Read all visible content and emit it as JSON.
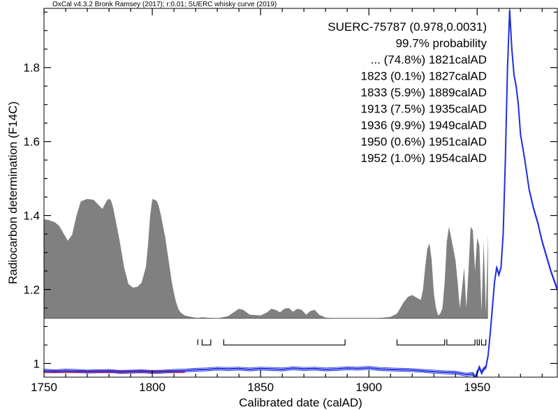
{
  "header": {
    "text": "OxCal v4.3.2 Bronk Ramsey (2017); r:0.01; SUERC whisky curve (2019)"
  },
  "colors": {
    "curve": "#1f2fe0",
    "probability_fill": "#808080",
    "measurement": "#e8403c",
    "axis": "#000000"
  },
  "chart_data": {
    "type": "area",
    "title": "",
    "xlabel": "Calibrated date (calAD)",
    "ylabel": "Radiocarbon determination (F14C)",
    "xlim": [
      1750,
      1987
    ],
    "ylim": [
      0.963,
      1.96
    ],
    "x_ticks": [
      1750,
      1800,
      1850,
      1900,
      1950
    ],
    "y_ticks": [
      1,
      1.2,
      1.4,
      1.6,
      1.8
    ],
    "y_tick_labels": [
      "1",
      "1.2",
      "1.4",
      "1.6",
      "1.8"
    ],
    "annotation": {
      "sample": "SUERC-75787 (0.978,0.0031)",
      "probability": "99.7% probability",
      "ranges": [
        "... (74.8%) 1821calAD",
        "1823 (0.1%) 1827calAD",
        "1833 (5.9%) 1889calAD",
        "1913 (7.5%) 1935calAD",
        "1936 (9.9%) 1949calAD",
        "1950 (0.6%) 1951calAD",
        "1952 (1.0%) 1954calAD"
      ]
    },
    "probability_distribution": {
      "baseline": 1.122,
      "x": [
        1750,
        1752,
        1755,
        1757,
        1759,
        1761,
        1763,
        1765,
        1767,
        1770,
        1773,
        1775,
        1777,
        1779,
        1780,
        1781,
        1782,
        1783,
        1785,
        1787,
        1789,
        1791,
        1793,
        1795,
        1797,
        1798,
        1799,
        1800,
        1802,
        1803,
        1804,
        1805,
        1806,
        1807,
        1808,
        1809,
        1810,
        1811,
        1812,
        1813,
        1815,
        1817,
        1819,
        1821,
        1823,
        1825,
        1830,
        1835,
        1838,
        1840,
        1842,
        1845,
        1850,
        1853,
        1855,
        1857,
        1859,
        1861,
        1863,
        1865,
        1867,
        1869,
        1871,
        1873,
        1875,
        1877,
        1880,
        1885,
        1890,
        1895,
        1900,
        1905,
        1910,
        1913,
        1916,
        1918,
        1920,
        1922,
        1924,
        1925,
        1926,
        1927,
        1928,
        1929,
        1930,
        1931,
        1932,
        1933,
        1934,
        1935,
        1936,
        1937,
        1938,
        1939,
        1940,
        1941,
        1942,
        1943,
        1944,
        1945,
        1946,
        1947,
        1948,
        1949,
        1950,
        1951,
        1952,
        1953,
        1954,
        1955
      ],
      "y": [
        1.39,
        1.388,
        1.382,
        1.372,
        1.352,
        1.332,
        1.348,
        1.4,
        1.438,
        1.445,
        1.442,
        1.43,
        1.418,
        1.44,
        1.446,
        1.44,
        1.42,
        1.39,
        1.33,
        1.26,
        1.215,
        1.205,
        1.207,
        1.218,
        1.26,
        1.32,
        1.4,
        1.445,
        1.44,
        1.425,
        1.4,
        1.37,
        1.34,
        1.3,
        1.26,
        1.22,
        1.19,
        1.165,
        1.148,
        1.138,
        1.13,
        1.127,
        1.125,
        1.123,
        1.125,
        1.124,
        1.122,
        1.128,
        1.14,
        1.148,
        1.145,
        1.132,
        1.13,
        1.138,
        1.148,
        1.145,
        1.138,
        1.148,
        1.15,
        1.14,
        1.148,
        1.145,
        1.132,
        1.142,
        1.145,
        1.132,
        1.124,
        1.122,
        1.122,
        1.122,
        1.122,
        1.123,
        1.126,
        1.135,
        1.165,
        1.18,
        1.185,
        1.178,
        1.172,
        1.2,
        1.26,
        1.31,
        1.325,
        1.28,
        1.19,
        1.15,
        1.13,
        1.135,
        1.15,
        1.22,
        1.33,
        1.37,
        1.34,
        1.31,
        1.28,
        1.22,
        1.15,
        1.2,
        1.26,
        1.15,
        1.25,
        1.37,
        1.36,
        1.25,
        1.34,
        1.32,
        1.14,
        1.33,
        1.14,
        1.35
      ]
    },
    "calibration_curve": {
      "x": [
        1750,
        1755,
        1760,
        1765,
        1770,
        1775,
        1780,
        1785,
        1790,
        1795,
        1800,
        1805,
        1810,
        1815,
        1820,
        1825,
        1830,
        1835,
        1840,
        1845,
        1850,
        1855,
        1860,
        1865,
        1870,
        1875,
        1880,
        1885,
        1890,
        1895,
        1900,
        1905,
        1910,
        1915,
        1920,
        1925,
        1930,
        1935,
        1940,
        1945,
        1948,
        1949,
        1950,
        1951,
        1952,
        1953,
        1954,
        1955,
        1956,
        1957,
        1958,
        1959,
        1960,
        1961,
        1962,
        1963,
        1964,
        1965,
        1966,
        1967,
        1968,
        1969,
        1970,
        1972,
        1974,
        1976,
        1978,
        1980,
        1982,
        1984,
        1987
      ],
      "y": [
        0.981,
        0.979,
        0.981,
        0.98,
        0.978,
        0.979,
        0.98,
        0.977,
        0.978,
        0.979,
        0.977,
        0.978,
        0.98,
        0.981,
        0.983,
        0.984,
        0.986,
        0.985,
        0.986,
        0.984,
        0.986,
        0.985,
        0.984,
        0.987,
        0.985,
        0.986,
        0.984,
        0.985,
        0.987,
        0.986,
        0.988,
        0.985,
        0.984,
        0.983,
        0.982,
        0.98,
        0.978,
        0.976,
        0.975,
        0.97,
        0.972,
        0.962,
        0.975,
        0.99,
        0.975,
        0.985,
        0.99,
        1.02,
        1.08,
        1.15,
        1.22,
        1.26,
        1.24,
        1.26,
        1.35,
        1.55,
        1.8,
        1.955,
        1.85,
        1.78,
        1.75,
        1.7,
        1.62,
        1.55,
        1.47,
        1.42,
        1.38,
        1.33,
        1.29,
        1.25,
        1.2
      ]
    },
    "measurement_band": {
      "x_start": 1750,
      "x_end": 1815,
      "lines": [
        0.978,
        0.9749,
        0.9811
      ]
    },
    "range_brackets": {
      "y": 1.05,
      "ranges": [
        [
          1821,
          1821
        ],
        [
          1823,
          1827
        ],
        [
          1833,
          1889
        ],
        [
          1913,
          1935
        ],
        [
          1936,
          1949
        ],
        [
          1950,
          1951
        ],
        [
          1952,
          1954
        ]
      ]
    }
  }
}
